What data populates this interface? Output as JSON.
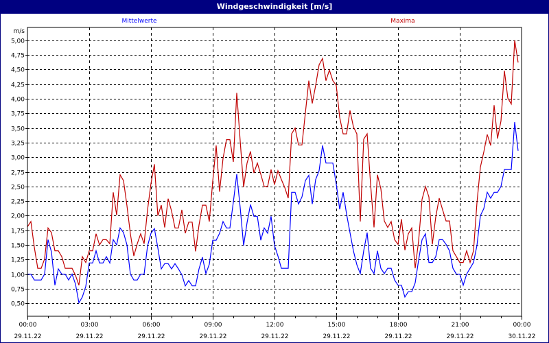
{
  "window": {
    "title": "Windgeschwindigkeit [m/s]"
  },
  "chart_data": {
    "type": "line",
    "title": "Windgeschwindigkeit [m/s]",
    "ylabel": "m/s",
    "xlabel": "",
    "ylim": [
      0.28,
      5.22
    ],
    "grid": true,
    "x_start_hours": 0,
    "x_step_hours": 0.16667,
    "xlim_hours": [
      0,
      24
    ],
    "yticks": [
      "0,50",
      "0,75",
      "1,00",
      "1,25",
      "1,50",
      "1,75",
      "2,00",
      "2,25",
      "2,50",
      "2,75",
      "3,00",
      "3,25",
      "3,50",
      "3,75",
      "4,00",
      "4,25",
      "4,50",
      "4,75",
      "5,00"
    ],
    "ytick_values": [
      0.5,
      0.75,
      1,
      1.25,
      1.5,
      1.75,
      2,
      2.25,
      2.5,
      2.75,
      3,
      3.25,
      3.5,
      3.75,
      4,
      4.25,
      4.5,
      4.75,
      5
    ],
    "xticks": [
      {
        "time": "00:00",
        "date": "29.11.22",
        "hours": 0
      },
      {
        "time": "03:00",
        "date": "29.11.22",
        "hours": 3
      },
      {
        "time": "06:00",
        "date": "29.11.22",
        "hours": 6
      },
      {
        "time": "09:00",
        "date": "29.11.22",
        "hours": 9
      },
      {
        "time": "12:00",
        "date": "29.11.22",
        "hours": 12
      },
      {
        "time": "15:00",
        "date": "29.11.22",
        "hours": 15
      },
      {
        "time": "18:00",
        "date": "29.11.22",
        "hours": 18
      },
      {
        "time": "21:00",
        "date": "29.11.22",
        "hours": 21
      },
      {
        "time": "00:00",
        "date": "30.11.22",
        "hours": 24
      }
    ],
    "series": [
      {
        "name": "Mittelwerte",
        "color": "#0000ff",
        "values": [
          1.0,
          1.0,
          0.9,
          0.9,
          0.9,
          1.0,
          1.59,
          1.38,
          0.81,
          1.09,
          1.0,
          1.0,
          0.9,
          1.0,
          0.83,
          0.51,
          0.61,
          0.79,
          1.19,
          1.19,
          1.4,
          1.19,
          1.19,
          1.3,
          1.19,
          1.59,
          1.5,
          1.79,
          1.71,
          1.5,
          1.0,
          0.9,
          0.9,
          1.0,
          1.0,
          1.48,
          1.7,
          1.78,
          1.45,
          1.09,
          1.18,
          1.18,
          1.09,
          1.18,
          1.09,
          0.99,
          0.8,
          0.89,
          0.8,
          0.8,
          1.09,
          1.29,
          1.01,
          1.17,
          1.58,
          1.58,
          1.7,
          1.9,
          1.79,
          1.79,
          2.23,
          2.71,
          2.14,
          1.49,
          1.88,
          2.19,
          1.99,
          1.99,
          1.58,
          1.79,
          1.7,
          1.99,
          1.49,
          1.31,
          1.1,
          1.1,
          1.1,
          2.4,
          2.4,
          2.2,
          2.32,
          2.6,
          2.69,
          2.2,
          2.62,
          2.77,
          3.2,
          2.9,
          2.9,
          2.9,
          2.54,
          2.11,
          2.4,
          2.03,
          1.71,
          1.4,
          1.16,
          1.01,
          1.4,
          1.71,
          1.1,
          1.01,
          1.4,
          1.1,
          1.01,
          1.1,
          1.1,
          0.9,
          0.81,
          0.81,
          0.61,
          0.7,
          0.7,
          0.85,
          1.24,
          1.59,
          1.69,
          1.2,
          1.2,
          1.3,
          1.59,
          1.59,
          1.51,
          1.4,
          1.1,
          1.0,
          1.0,
          0.81,
          1.0,
          1.1,
          1.2,
          1.49,
          2.0,
          2.12,
          2.4,
          2.3,
          2.4,
          2.4,
          2.5,
          2.79,
          2.79,
          2.79,
          3.6,
          3.11
        ]
      },
      {
        "name": "Maxima",
        "color": "#c00000",
        "values": [
          1.81,
          1.9,
          1.46,
          1.1,
          1.1,
          1.26,
          1.79,
          1.71,
          1.4,
          1.4,
          1.3,
          1.1,
          1.1,
          1.1,
          0.98,
          0.81,
          1.3,
          1.2,
          1.4,
          1.4,
          1.69,
          1.5,
          1.59,
          1.59,
          1.52,
          2.4,
          2.01,
          2.7,
          2.6,
          2.17,
          1.69,
          1.31,
          1.52,
          1.69,
          1.52,
          2.1,
          2.55,
          2.88,
          2.0,
          2.18,
          1.8,
          2.29,
          2.08,
          1.79,
          1.79,
          2.1,
          1.7,
          1.89,
          1.89,
          1.39,
          1.84,
          2.18,
          2.18,
          1.9,
          2.59,
          3.2,
          2.41,
          2.98,
          3.3,
          3.3,
          2.92,
          4.1,
          3.28,
          2.49,
          2.9,
          3.1,
          2.73,
          2.9,
          2.71,
          2.5,
          2.5,
          2.79,
          2.53,
          2.77,
          2.62,
          2.48,
          2.3,
          3.4,
          3.5,
          3.21,
          3.21,
          3.76,
          4.31,
          3.92,
          4.23,
          4.58,
          4.69,
          4.31,
          4.49,
          4.31,
          4.23,
          3.68,
          3.4,
          3.4,
          3.8,
          3.52,
          3.4,
          1.9,
          3.31,
          3.4,
          2.54,
          1.8,
          2.7,
          2.46,
          1.91,
          1.8,
          1.9,
          1.59,
          1.51,
          1.94,
          1.41,
          1.69,
          1.79,
          1.1,
          1.57,
          2.28,
          2.5,
          2.32,
          1.51,
          1.98,
          2.3,
          2.1,
          1.91,
          1.91,
          1.4,
          1.3,
          1.2,
          1.2,
          1.4,
          1.2,
          1.4,
          2.22,
          2.83,
          3.09,
          3.39,
          3.2,
          3.89,
          3.32,
          3.62,
          4.48,
          4.01,
          3.91,
          5.0,
          4.62
        ]
      }
    ]
  }
}
